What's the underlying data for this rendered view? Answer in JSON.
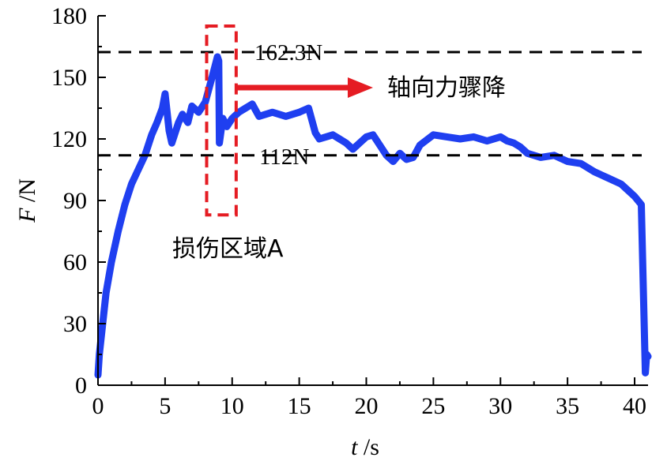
{
  "chart_data": {
    "type": "line",
    "xlabel": {
      "var": "t",
      "unit": "/s"
    },
    "ylabel": {
      "var": "F",
      "unit": "/N"
    },
    "xlim": [
      0,
      41
    ],
    "ylim": [
      0,
      180
    ],
    "xticks": [
      0,
      5,
      10,
      15,
      20,
      25,
      30,
      35,
      40
    ],
    "yticks": [
      0,
      30,
      60,
      90,
      120,
      150,
      180
    ],
    "grid": false,
    "legend": "none",
    "series": [
      {
        "color": "#1f3ff0",
        "x": [
          0,
          0.1,
          0.6,
          1,
          1.5,
          2,
          2.5,
          3,
          3.5,
          4,
          4.4,
          4.8,
          5.0,
          5.3,
          5.5,
          5.7,
          6.0,
          6.3,
          6.7,
          7.0,
          7.5,
          8.0,
          8.5,
          8.9,
          9.0,
          9.05,
          9.3,
          9.6,
          10.0,
          10.5,
          11.0,
          11.5,
          12,
          13,
          14,
          15,
          15.7,
          16.2,
          16.5,
          17,
          17.5,
          18,
          18.5,
          19,
          19.5,
          20,
          20.5,
          21,
          21.5,
          22,
          22.5,
          23,
          23.5,
          24,
          25,
          26,
          27,
          28,
          29,
          30,
          30.5,
          31,
          31.5,
          32,
          33,
          34,
          35,
          36,
          37,
          38,
          39,
          39.5,
          40,
          40.5,
          40.8,
          40.9,
          41
        ],
        "y": [
          5,
          15,
          45,
          60,
          75,
          88,
          98,
          105,
          112,
          122,
          128,
          135,
          142,
          124,
          118,
          122,
          128,
          132,
          128,
          136,
          133,
          138,
          150,
          160,
          158,
          118,
          130,
          126,
          130,
          133,
          135,
          137,
          131,
          133,
          131,
          133,
          135,
          123,
          120,
          121,
          122,
          120,
          118,
          115,
          118,
          121,
          122,
          117,
          112,
          109,
          113,
          110,
          111,
          117,
          122,
          121,
          120,
          121,
          119,
          121,
          119,
          118,
          116,
          113,
          111,
          112,
          109,
          108,
          104,
          101,
          98,
          95,
          92,
          88,
          6,
          15,
          14
        ]
      }
    ],
    "annotations": {
      "peak_value": 162.3,
      "peak_label": "162.3N",
      "plateau_value": 112,
      "plateau_label": "112N",
      "drop_label": "轴向力骤降",
      "damage_region": {
        "label": "损伤区域A",
        "x_start": 8.1,
        "x_end": 10.3,
        "y_low": 83,
        "y_high": 175
      }
    }
  },
  "colors": {
    "series": "#1f3ff0",
    "annotation_red": "#e51c23",
    "reference_line": "#000000"
  }
}
